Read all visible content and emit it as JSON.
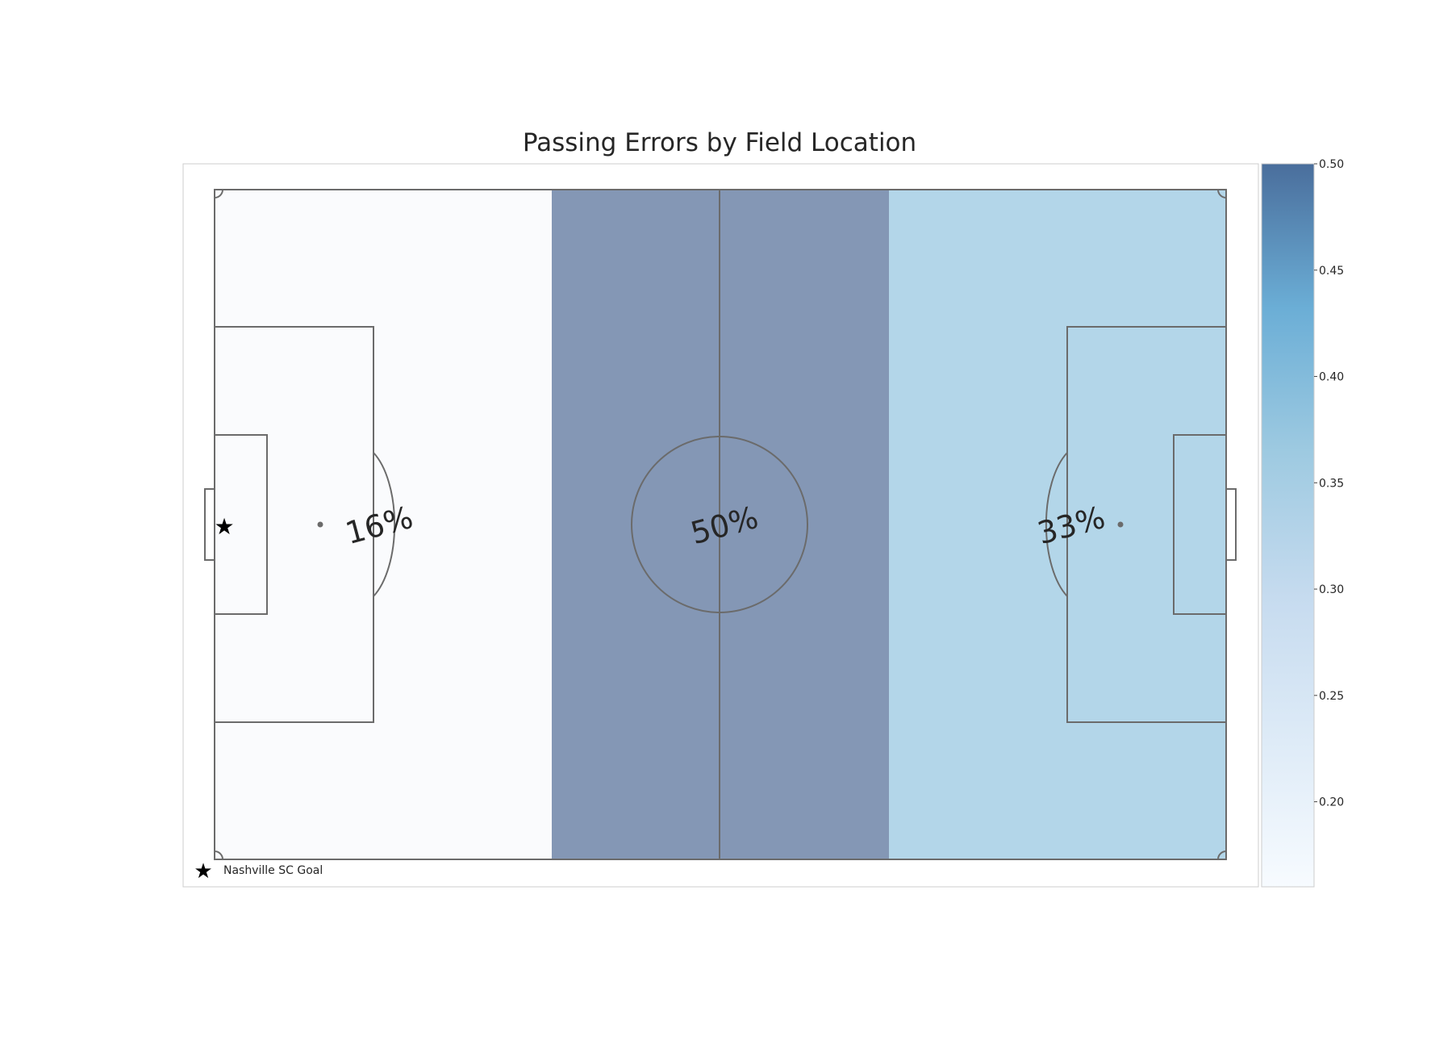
{
  "chart_data": {
    "type": "heatmap",
    "title": "Passing Errors by Field Location",
    "zones": [
      {
        "name": "defensive third",
        "value": 0.16,
        "label": "16%"
      },
      {
        "name": "middle third",
        "value": 0.5,
        "label": "50%"
      },
      {
        "name": "attacking third",
        "value": 0.33,
        "label": "33%"
      }
    ],
    "colorbar": {
      "min": 0.16,
      "max": 0.5,
      "ticks": [
        0.2,
        0.25,
        0.3,
        0.35,
        0.4,
        0.45,
        0.5
      ],
      "tick_labels": [
        "0.20",
        "0.25",
        "0.30",
        "0.35",
        "0.40",
        "0.45",
        "0.50"
      ],
      "colors": [
        "#f7fbff",
        "#deebf7",
        "#c6dbef",
        "#9ecae1",
        "#6baed6",
        "#4a6e9c"
      ],
      "placement": "right"
    },
    "legend": {
      "placement": "bottom-left",
      "entries": [
        {
          "marker": "star",
          "label": "Nashville SC Goal"
        }
      ]
    },
    "marker": {
      "symbol": "star",
      "location": "left goal"
    },
    "zone_colors": [
      "#fafbfd",
      "#8497b5",
      "#b3d6e9"
    ],
    "pitch_line_color": "#6b6b6b",
    "grid": false
  }
}
